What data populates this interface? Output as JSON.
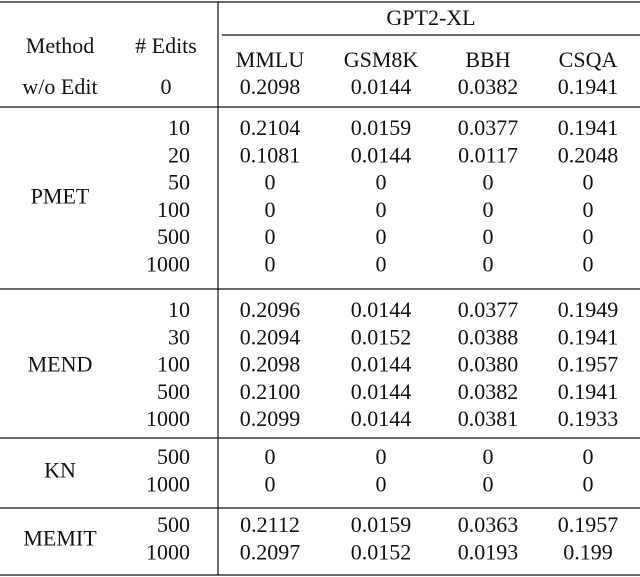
{
  "table": {
    "group_header": "GPT2-XL",
    "columns": [
      "Method",
      "# Edits",
      "MMLU",
      "GSM8K",
      "BBH",
      "CSQA"
    ],
    "baseline": {
      "method": "w/o Edit",
      "edits": "0",
      "values": [
        "0.2098",
        "0.0144",
        "0.0382",
        "0.1941"
      ]
    },
    "groups": [
      {
        "method": "PMET",
        "rows": [
          [
            "10",
            "0.2104",
            "0.0159",
            "0.0377",
            "0.1941"
          ],
          [
            "20",
            "0.1081",
            "0.0144",
            "0.0117",
            "0.2048"
          ],
          [
            "50",
            "0",
            "0",
            "0",
            "0"
          ],
          [
            "100",
            "0",
            "0",
            "0",
            "0"
          ],
          [
            "500",
            "0",
            "0",
            "0",
            "0"
          ],
          [
            "1000",
            "0",
            "0",
            "0",
            "0"
          ]
        ]
      },
      {
        "method": "MEND",
        "rows": [
          [
            "10",
            "0.2096",
            "0.0144",
            "0.0377",
            "0.1949"
          ],
          [
            "30",
            "0.2094",
            "0.0152",
            "0.0388",
            "0.1941"
          ],
          [
            "100",
            "0.2098",
            "0.0144",
            "0.0380",
            "0.1957"
          ],
          [
            "500",
            "0.2100",
            "0.0144",
            "0.0382",
            "0.1941"
          ],
          [
            "1000",
            "0.2099",
            "0.0144",
            "0.0381",
            "0.1933"
          ]
        ]
      },
      {
        "method": "KN",
        "rows": [
          [
            "500",
            "0",
            "0",
            "0",
            "0"
          ],
          [
            "1000",
            "0",
            "0",
            "0",
            "0"
          ]
        ]
      },
      {
        "method": "MEMIT",
        "rows": [
          [
            "500",
            "0.2112",
            "0.0159",
            "0.0363",
            "0.1957"
          ],
          [
            "1000",
            "0.2097",
            "0.0152",
            "0.0193",
            "0.199"
          ]
        ]
      }
    ]
  }
}
